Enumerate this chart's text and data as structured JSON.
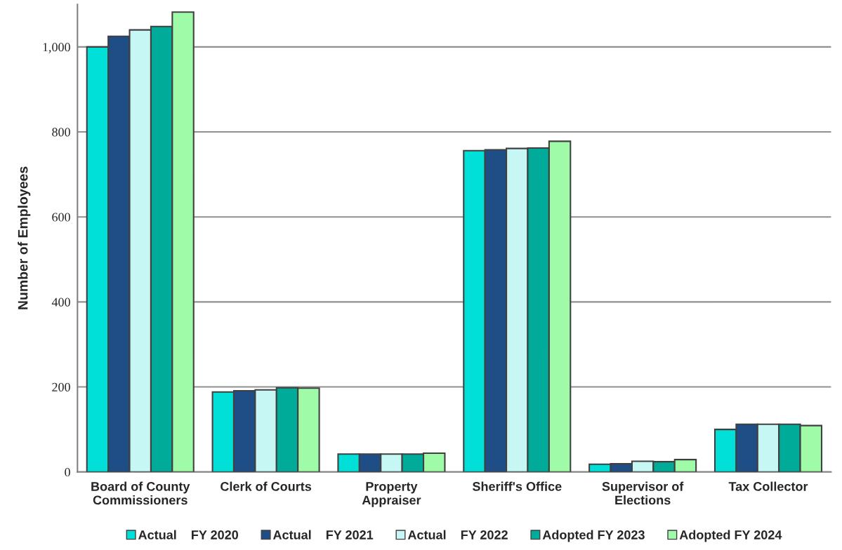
{
  "chart_data": {
    "type": "bar",
    "ylabel": "Number of Employees",
    "categories": [
      "Board of County\nCommissioners",
      "Clerk of Courts",
      "Property\nAppraiser",
      "Sheriff's Office",
      "Supervisor of\nElections",
      "Tax Collector"
    ],
    "series": [
      {
        "name": "Actual    FY 2020",
        "color": "#00e0d8",
        "values": [
          1000,
          188,
          42,
          756,
          18,
          100
        ]
      },
      {
        "name": "Actual    FY 2021",
        "color": "#1f4e87",
        "values": [
          1025,
          191,
          42,
          758,
          19,
          112
        ]
      },
      {
        "name": "Actual    FY 2022",
        "color": "#c6f7f5",
        "values": [
          1040,
          193,
          42,
          761,
          25,
          112
        ]
      },
      {
        "name": "Adopted FY 2023",
        "color": "#00ab9a",
        "values": [
          1048,
          198,
          42,
          762,
          24,
          112
        ]
      },
      {
        "name": "Adopted FY 2024",
        "color": "#a0fba8",
        "values": [
          1082,
          197,
          44,
          778,
          29,
          109
        ]
      }
    ],
    "ylim": [
      0,
      1100
    ],
    "yticks": [
      0,
      200,
      400,
      600,
      800,
      {
        "value": 1000,
        "label": "1,000"
      }
    ],
    "grid": "y",
    "legend": "bottom"
  }
}
